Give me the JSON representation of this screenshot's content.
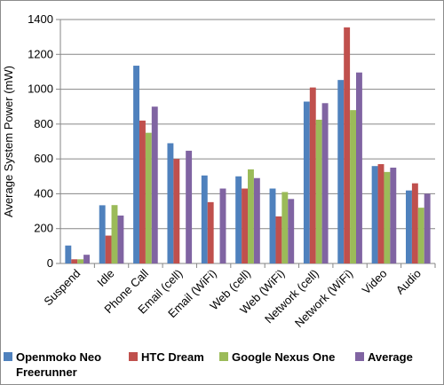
{
  "chart_data": {
    "type": "bar",
    "title": "",
    "xlabel": "",
    "ylabel": "Average System Power (mW)",
    "ylim": [
      0,
      1400
    ],
    "yticks": [
      0,
      200,
      400,
      600,
      800,
      1000,
      1200,
      1400
    ],
    "grid": true,
    "legend_position": "bottom",
    "categories": [
      "Suspend",
      "Idle",
      "Phone Call",
      "Email (cell)",
      "Email (WiFi)",
      "Web (cell)",
      "Web (WiFi)",
      "Network (cell)",
      "Network (WiFi)",
      "Video",
      "Audio"
    ],
    "series": [
      {
        "name": "Openmoko Neo Freerunner",
        "color": "#4f81bd",
        "values": [
          103,
          334,
          1135,
          690,
          505,
          500,
          430,
          929,
          1053,
          559,
          419
        ]
      },
      {
        "name": "HTC Dream",
        "color": "#c0504d",
        "values": [
          24,
          160,
          820,
          600,
          352,
          430,
          270,
          1010,
          1355,
          570,
          460
        ]
      },
      {
        "name": "Google Nexus One",
        "color": "#9bbb59",
        "values": [
          24,
          335,
          750,
          0,
          0,
          540,
          410,
          825,
          880,
          525,
          320
        ]
      },
      {
        "name": "Average",
        "color": "#8064a2",
        "values": [
          50,
          275,
          900,
          647,
          430,
          490,
          370,
          920,
          1096,
          550,
          400
        ]
      }
    ]
  }
}
